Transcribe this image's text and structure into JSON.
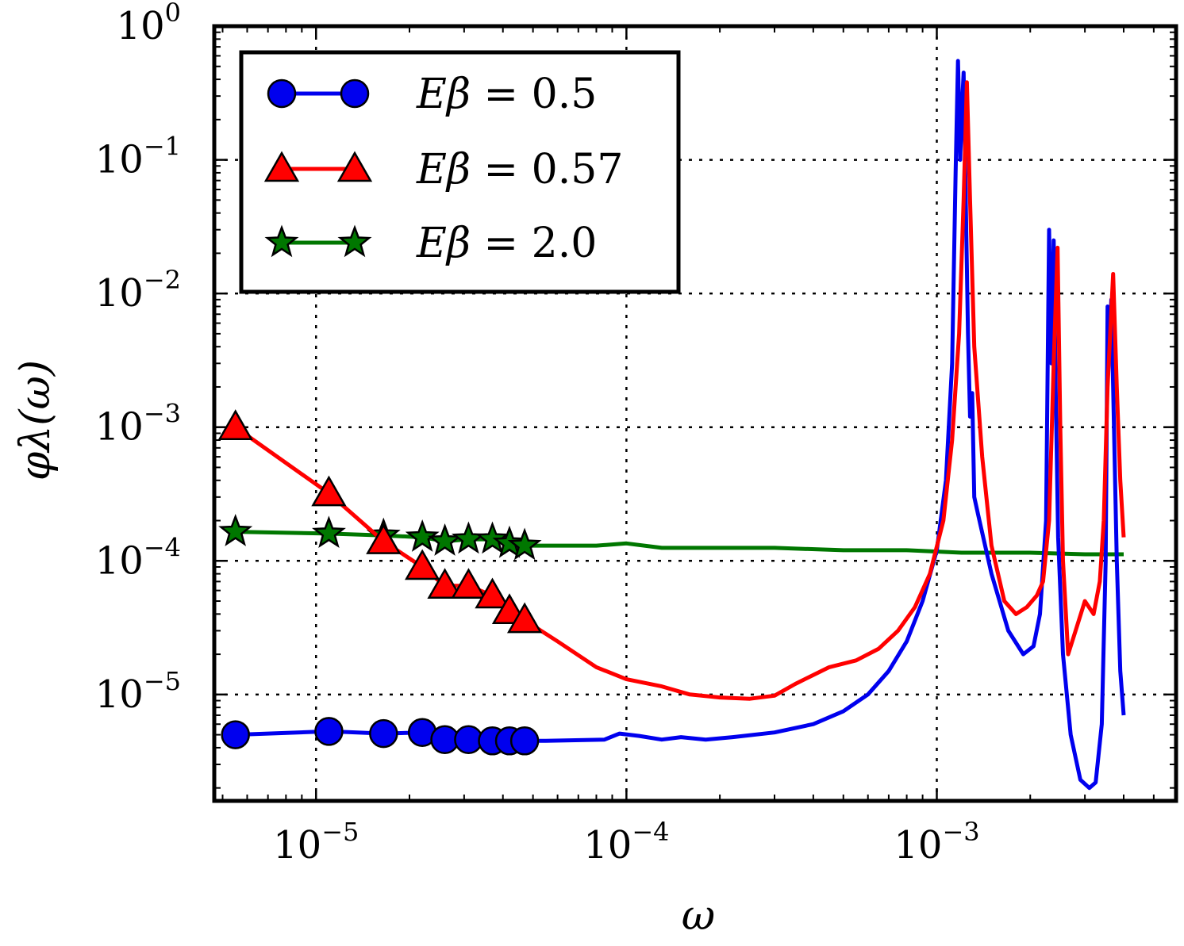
{
  "chart_data": {
    "type": "line",
    "xscale": "log",
    "yscale": "log",
    "xlabel": "ω",
    "ylabel": "φλ(ω)",
    "xlim": [
      4.7e-06,
      0.0059
    ],
    "ylim": [
      1.6e-06,
      1.0
    ],
    "grid": true,
    "legend_position": "top-left",
    "x_ticks": [
      {
        "value": 1e-05,
        "base": "10",
        "exp": "−5"
      },
      {
        "value": 0.0001,
        "base": "10",
        "exp": "−4"
      },
      {
        "value": 0.001,
        "base": "10",
        "exp": "−3"
      }
    ],
    "y_ticks": [
      {
        "value": 1e-05,
        "base": "10",
        "exp": "−5"
      },
      {
        "value": 0.0001,
        "base": "10",
        "exp": "−4"
      },
      {
        "value": 0.001,
        "base": "10",
        "exp": "−3"
      },
      {
        "value": 0.01,
        "base": "10",
        "exp": "−2"
      },
      {
        "value": 0.1,
        "base": "10",
        "exp": "−1"
      },
      {
        "value": 1,
        "base": "10",
        "exp": "0"
      }
    ],
    "series": [
      {
        "name": "Eβ = 0.5",
        "color": "#0000ee",
        "marker": "circle",
        "points": [
          [
            5.5e-06,
            5e-06
          ],
          [
            1.1e-05,
            5.3e-06
          ],
          [
            1.65e-05,
            5.1e-06
          ],
          [
            2.2e-05,
            5.2e-06
          ],
          [
            2.6e-05,
            4.6e-06
          ],
          [
            3.1e-05,
            4.6e-06
          ],
          [
            3.7e-05,
            4.5e-06
          ],
          [
            4.2e-05,
            4.5e-06
          ],
          [
            4.7e-05,
            4.5e-06
          ],
          [
            5.5e-05,
            4.5e-06
          ],
          [
            8.5e-05,
            4.6e-06
          ],
          [
            9.5e-05,
            5.1e-06
          ],
          [
            0.00011,
            4.9e-06
          ],
          [
            0.00013,
            4.6e-06
          ],
          [
            0.00015,
            4.8e-06
          ],
          [
            0.00018,
            4.6e-06
          ],
          [
            0.00022,
            4.8e-06
          ],
          [
            0.0003,
            5.2e-06
          ],
          [
            0.0004,
            6e-06
          ],
          [
            0.0005,
            7.5e-06
          ],
          [
            0.0006,
            1e-05
          ],
          [
            0.0007,
            1.5e-05
          ],
          [
            0.0008,
            2.5e-05
          ],
          [
            0.0009,
            5e-05
          ],
          [
            0.001,
            0.00012
          ],
          [
            0.00107,
            0.0004
          ],
          [
            0.00112,
            0.003
          ],
          [
            0.00115,
            0.08
          ],
          [
            0.00117,
            0.55
          ],
          [
            0.00119,
            0.1
          ],
          [
            0.0012,
            0.2
          ],
          [
            0.00122,
            0.45
          ],
          [
            0.00124,
            0.05
          ],
          [
            0.00126,
            0.005
          ],
          [
            0.00128,
            0.0012
          ],
          [
            0.0013,
            0.0018
          ],
          [
            0.00132,
            0.0003
          ],
          [
            0.00136,
            0.00022
          ],
          [
            0.0015,
            8e-05
          ],
          [
            0.0017,
            3e-05
          ],
          [
            0.0019,
            2e-05
          ],
          [
            0.00205,
            2.3e-05
          ],
          [
            0.00215,
            4e-05
          ],
          [
            0.00225,
            0.0002
          ],
          [
            0.0023,
            0.03
          ],
          [
            0.00234,
            0.003
          ],
          [
            0.00238,
            0.025
          ],
          [
            0.00242,
            0.0015
          ],
          [
            0.00246,
            0.00015
          ],
          [
            0.00255,
            2e-05
          ],
          [
            0.0027,
            5e-06
          ],
          [
            0.0029,
            2.3e-06
          ],
          [
            0.0031,
            2e-06
          ],
          [
            0.00325,
            2.2e-06
          ],
          [
            0.0034,
            6e-06
          ],
          [
            0.0035,
            0.0001
          ],
          [
            0.00355,
            0.008
          ],
          [
            0.0036,
            0.004
          ],
          [
            0.00365,
            0.009
          ],
          [
            0.0037,
            0.002
          ],
          [
            0.0038,
            0.0001
          ],
          [
            0.0039,
            1.5e-05
          ],
          [
            0.004,
            7e-06
          ]
        ],
        "markers": [
          [
            5.5e-06,
            5e-06
          ],
          [
            1.1e-05,
            5.3e-06
          ],
          [
            1.65e-05,
            5.1e-06
          ],
          [
            2.2e-05,
            5.2e-06
          ],
          [
            2.6e-05,
            4.6e-06
          ],
          [
            3.1e-05,
            4.6e-06
          ],
          [
            3.7e-05,
            4.5e-06
          ],
          [
            4.2e-05,
            4.5e-06
          ],
          [
            4.7e-05,
            4.5e-06
          ]
        ]
      },
      {
        "name": "Eβ = 0.57",
        "color": "#ff0000",
        "marker": "triangle",
        "points": [
          [
            5.5e-06,
            0.001
          ],
          [
            1.1e-05,
            0.00032
          ],
          [
            1.65e-05,
            0.00014
          ],
          [
            2.2e-05,
            9e-05
          ],
          [
            2.6e-05,
            6.5e-05
          ],
          [
            3.1e-05,
            6.5e-05
          ],
          [
            3.7e-05,
            5.5e-05
          ],
          [
            4.2e-05,
            4.2e-05
          ],
          [
            4.7e-05,
            3.6e-05
          ],
          [
            6e-05,
            2.5e-05
          ],
          [
            8e-05,
            1.6e-05
          ],
          [
            0.0001,
            1.3e-05
          ],
          [
            0.00013,
            1.15e-05
          ],
          [
            0.00016,
            1e-05
          ],
          [
            0.0002,
            9.5e-06
          ],
          [
            0.00025,
            9.3e-06
          ],
          [
            0.0003,
            9.8e-06
          ],
          [
            0.00035,
            1.2e-05
          ],
          [
            0.0004,
            1.4e-05
          ],
          [
            0.00045,
            1.6e-05
          ],
          [
            0.00055,
            1.8e-05
          ],
          [
            0.00065,
            2.2e-05
          ],
          [
            0.00075,
            3e-05
          ],
          [
            0.00085,
            4.5e-05
          ],
          [
            0.00095,
            8e-05
          ],
          [
            0.00105,
            0.0002
          ],
          [
            0.00112,
            0.0008
          ],
          [
            0.00118,
            0.005
          ],
          [
            0.00122,
            0.05
          ],
          [
            0.00125,
            0.38
          ],
          [
            0.00128,
            0.05
          ],
          [
            0.00132,
            0.004
          ],
          [
            0.0014,
            0.0006
          ],
          [
            0.0015,
            0.00013
          ],
          [
            0.00165,
            5e-05
          ],
          [
            0.0018,
            4e-05
          ],
          [
            0.00195,
            4.5e-05
          ],
          [
            0.0021,
            5.5e-05
          ],
          [
            0.0022,
            7e-05
          ],
          [
            0.0023,
            0.0002
          ],
          [
            0.00238,
            0.003
          ],
          [
            0.00245,
            0.022
          ],
          [
            0.0025,
            0.001
          ],
          [
            0.00255,
            0.0001
          ],
          [
            0.00265,
            2e-05
          ],
          [
            0.0028,
            3e-05
          ],
          [
            0.003,
            5e-05
          ],
          [
            0.0032,
            4e-05
          ],
          [
            0.00335,
            7e-05
          ],
          [
            0.00345,
            0.0002
          ],
          [
            0.00355,
            0.002
          ],
          [
            0.0037,
            0.014
          ],
          [
            0.0038,
            0.002
          ],
          [
            0.0039,
            0.0004
          ],
          [
            0.004,
            0.00015
          ]
        ],
        "markers": [
          [
            5.5e-06,
            0.001
          ],
          [
            1.1e-05,
            0.00032
          ],
          [
            1.65e-05,
            0.00014
          ],
          [
            2.2e-05,
            9e-05
          ],
          [
            2.6e-05,
            6.5e-05
          ],
          [
            3.1e-05,
            6.5e-05
          ],
          [
            3.7e-05,
            5.5e-05
          ],
          [
            4.2e-05,
            4.2e-05
          ],
          [
            4.7e-05,
            3.6e-05
          ]
        ]
      },
      {
        "name": "Eβ = 2.0",
        "color": "#007700",
        "marker": "star",
        "points": [
          [
            5.5e-06,
            0.000165
          ],
          [
            1.1e-05,
            0.00016
          ],
          [
            1.65e-05,
            0.000155
          ],
          [
            2.2e-05,
            0.00015
          ],
          [
            2.6e-05,
            0.00014
          ],
          [
            3.1e-05,
            0.000145
          ],
          [
            3.7e-05,
            0.000145
          ],
          [
            4.2e-05,
            0.000135
          ],
          [
            4.7e-05,
            0.00013
          ],
          [
            6e-05,
            0.00013
          ],
          [
            8e-05,
            0.00013
          ],
          [
            0.0001,
            0.000135
          ],
          [
            0.00013,
            0.000125
          ],
          [
            0.0002,
            0.000125
          ],
          [
            0.0003,
            0.000125
          ],
          [
            0.0005,
            0.00012
          ],
          [
            0.0008,
            0.00012
          ],
          [
            0.0012,
            0.000115
          ],
          [
            0.002,
            0.000115
          ],
          [
            0.003,
            0.000112
          ],
          [
            0.004,
            0.000112
          ]
        ],
        "markers": [
          [
            5.5e-06,
            0.000165
          ],
          [
            1.1e-05,
            0.00016
          ],
          [
            1.65e-05,
            0.000155
          ],
          [
            2.2e-05,
            0.00015
          ],
          [
            2.6e-05,
            0.00014
          ],
          [
            3.1e-05,
            0.000145
          ],
          [
            3.7e-05,
            0.000145
          ],
          [
            4.2e-05,
            0.000135
          ],
          [
            4.7e-05,
            0.00013
          ]
        ]
      }
    ],
    "legend": [
      {
        "base": "Eβ = ",
        "value": "0.5"
      },
      {
        "base": "Eβ = ",
        "value": "0.57"
      },
      {
        "base": "Eβ = ",
        "value": "2.0"
      }
    ]
  }
}
